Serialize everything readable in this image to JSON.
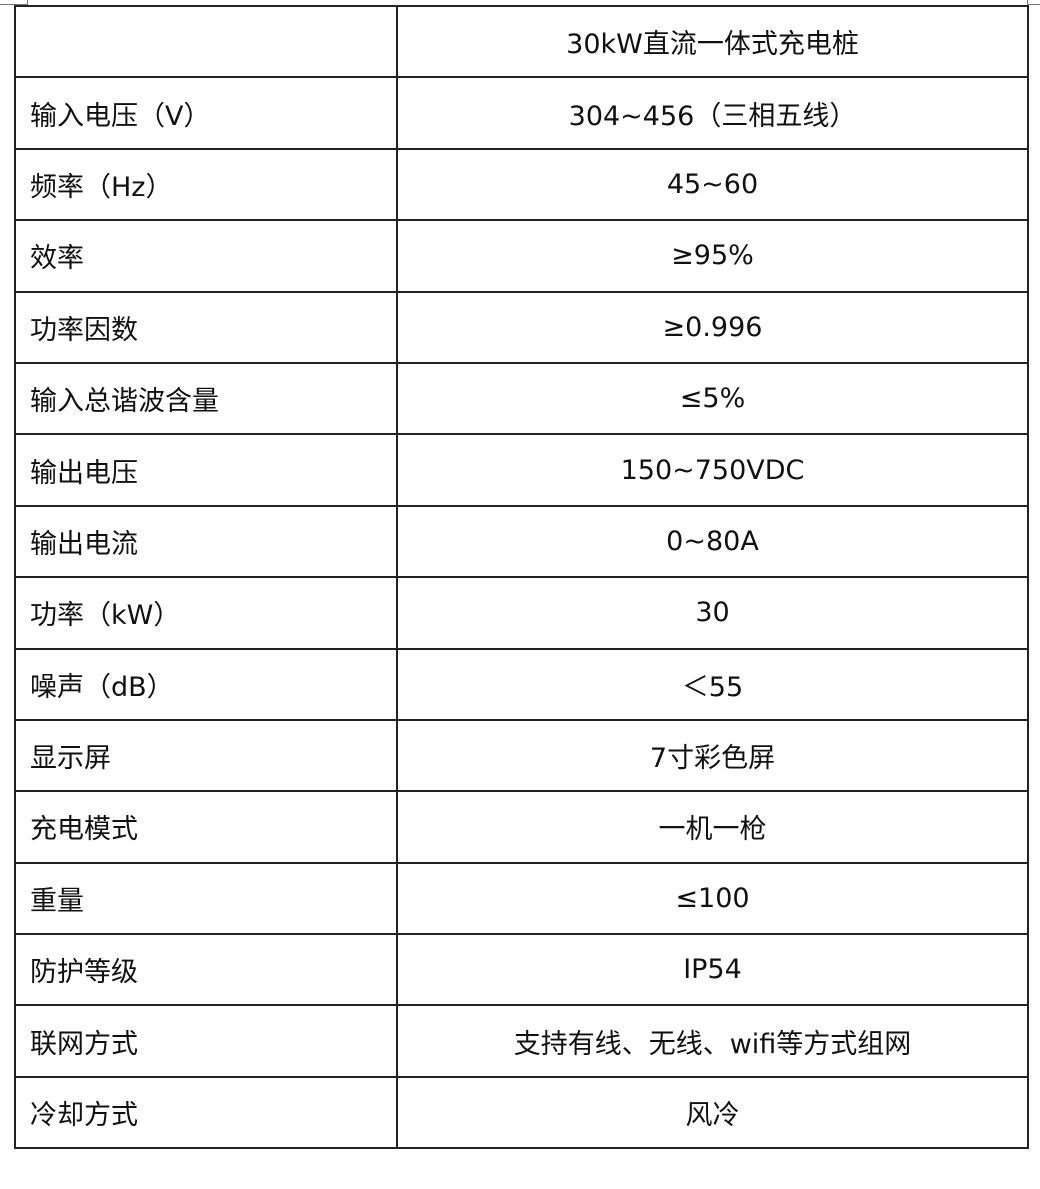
{
  "table": {
    "header": [
      "",
      "30kW直流一体式充电桩"
    ],
    "rows": [
      [
        "输入电压（V）",
        "304~456（三相五线）"
      ],
      [
        "频率（Hz）",
        "45~60"
      ],
      [
        "效率",
        "≥95%"
      ],
      [
        "功率因数",
        "≥0.996"
      ],
      [
        "输入总谐波含量",
        "≤5%"
      ],
      [
        "输出电压",
        "150~750VDC"
      ],
      [
        "输出电流",
        "0~80A"
      ],
      [
        "功率（kW）",
        "30"
      ],
      [
        "噪声（dB）",
        "＜55"
      ],
      [
        "显示屏",
        "7寸彩色屏"
      ],
      [
        "充电模式",
        "一机一枪"
      ],
      [
        "重量",
        "≤100"
      ],
      [
        "防护等级",
        "IP54"
      ],
      [
        "联网方式",
        "支持有线、无线、wifi等方式组网"
      ],
      [
        "冷却方式",
        "风冷"
      ]
    ]
  }
}
